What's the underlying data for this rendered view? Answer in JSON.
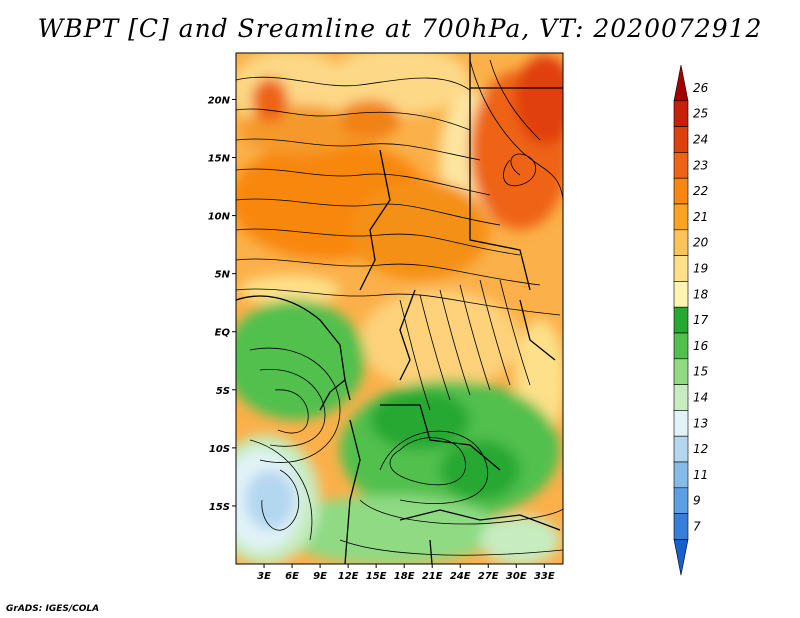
{
  "title": "WBPT [C] and Sreamline at 700hPa, VT: 2020072912",
  "credit": "GrADS: IGES/COLA",
  "map": {
    "lon_range": [
      0,
      35
    ],
    "lat_range": [
      -20,
      24
    ],
    "lon_ticks": [
      {
        "value": 3,
        "label": "3E"
      },
      {
        "value": 6,
        "label": "6E"
      },
      {
        "value": 9,
        "label": "9E"
      },
      {
        "value": 12,
        "label": "12E"
      },
      {
        "value": 15,
        "label": "15E"
      },
      {
        "value": 18,
        "label": "18E"
      },
      {
        "value": 21,
        "label": "21E"
      },
      {
        "value": 24,
        "label": "24E"
      },
      {
        "value": 27,
        "label": "27E"
      },
      {
        "value": 30,
        "label": "30E"
      },
      {
        "value": 33,
        "label": "33E"
      }
    ],
    "lat_ticks": [
      {
        "value": 20,
        "label": "20N"
      },
      {
        "value": 15,
        "label": "15N"
      },
      {
        "value": 10,
        "label": "10N"
      },
      {
        "value": 5,
        "label": "5N"
      },
      {
        "value": 0,
        "label": "EQ"
      },
      {
        "value": -5,
        "label": "5S"
      },
      {
        "value": -10,
        "label": "10S"
      },
      {
        "value": -15,
        "label": "15S"
      }
    ]
  },
  "colorbar": {
    "levels": [
      "26",
      "25",
      "24",
      "23",
      "22",
      "21",
      "20",
      "19",
      "18",
      "17",
      "16",
      "15",
      "14",
      "13",
      "12",
      "11",
      "9",
      "7"
    ],
    "colors": [
      "#a50000",
      "#c81e0a",
      "#e0400e",
      "#ee6317",
      "#f8870f",
      "#fba420",
      "#fdc25a",
      "#fde089",
      "#fdf4b2",
      "#26a832",
      "#51c04e",
      "#8fda83",
      "#c6ecbf",
      "#e2f3f8",
      "#b4d7f0",
      "#86bbe9",
      "#5c9fe2",
      "#357fd8",
      "#1560cc"
    ]
  },
  "colors": {
    "warm_zone": "#f8870f",
    "hot_zone": "#e0400e",
    "green_zone": "#51c04e",
    "blue_zone": "#b4d7f0"
  }
}
